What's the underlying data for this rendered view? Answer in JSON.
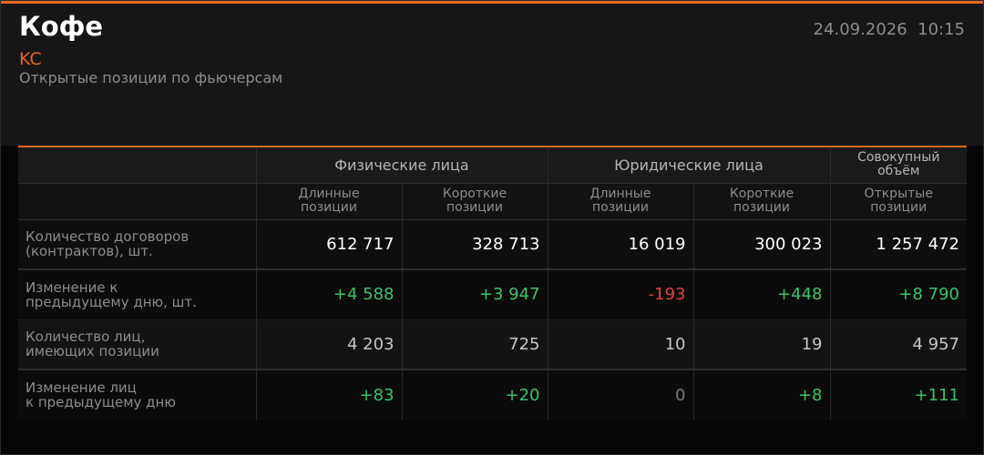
{
  "header": {
    "title": "Кофе",
    "ticker": "KC",
    "subtitle": "Открытые позиции по фьючерсам",
    "date": "24.09.2026",
    "time": "10:15"
  },
  "table": {
    "groups": [
      "Физические лица",
      "Юридические лица",
      "Совокупный\nобъём"
    ],
    "columns": [
      "Длинные\nпозиции",
      "Короткие\nпозиции",
      "Длинные\nпозиции",
      "Короткие\nпозиции",
      "Открытые\nпозиции"
    ],
    "rows": [
      {
        "label": "Количество договоров\n(контрактов), шт.",
        "values": [
          "612 717",
          "328 713",
          "16 019",
          "300 023",
          "1 257 472"
        ]
      },
      {
        "label": "Изменение к\nпредыдущему дню, шт.",
        "values": [
          "+4 588",
          "+3 947",
          "-193",
          "+448",
          "+8 790"
        ]
      },
      {
        "label": "Количество лиц,\nимеющих позиции",
        "values": [
          "4 203",
          "725",
          "10",
          "19",
          "4 957"
        ]
      },
      {
        "label": "Изменение лиц\nк предыдущему дню",
        "values": [
          "+83",
          "+20",
          "0",
          "+8",
          "+111"
        ]
      }
    ]
  }
}
